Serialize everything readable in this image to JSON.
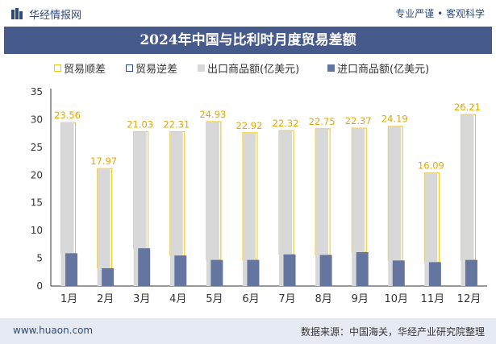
{
  "header": {
    "site_name": "华经情报网",
    "slogan": "专业严谨 • 客观科学"
  },
  "footer": {
    "url": "www.huaon.com",
    "source": "数据来源：中国海关，华经产业研究院整理"
  },
  "colors": {
    "brand": "#2e4a7d",
    "title_bar": "#475a8c",
    "surplus_outline": "#f5c400",
    "deficit_outline": "#2e4a7d",
    "export_bar": "#d8d8d8",
    "import_bar": "#6476a0",
    "surplus_label": "#e3a800"
  },
  "chart_data": {
    "type": "bar",
    "title": "2024年中国与比利时月度贸易差额",
    "categories": [
      "1月",
      "2月",
      "3月",
      "4月",
      "5月",
      "6月",
      "7月",
      "8月",
      "9月",
      "10月",
      "11月",
      "12月"
    ],
    "series": [
      {
        "name": "贸易顺差",
        "style": "outline",
        "values": [
          23.56,
          17.97,
          21.03,
          22.31,
          24.93,
          22.92,
          22.32,
          22.75,
          22.37,
          24.19,
          16.09,
          26.21
        ]
      },
      {
        "name": "贸易逆差",
        "style": "outline",
        "values": [
          null,
          null,
          null,
          null,
          null,
          null,
          null,
          null,
          null,
          null,
          null,
          null
        ]
      },
      {
        "name": "出口商品额(亿美元)",
        "values": [
          29.5,
          21.2,
          27.8,
          27.8,
          29.6,
          27.6,
          28.0,
          28.3,
          28.5,
          28.8,
          20.4,
          30.9
        ]
      },
      {
        "name": "进口商品额(亿美元)",
        "values": [
          5.9,
          3.2,
          6.8,
          5.5,
          4.7,
          4.7,
          5.7,
          5.6,
          6.1,
          4.6,
          4.3,
          4.7
        ]
      }
    ],
    "data_labels": [
      "23.56",
      "17.97",
      "21.03",
      "22.31",
      "24.93",
      "22.92",
      "22.32",
      "22.75",
      "22.37",
      "24.19",
      "16.09",
      "26.21"
    ],
    "y_ticks": [
      "0",
      "5",
      "10",
      "15",
      "20",
      "25",
      "30",
      "35"
    ],
    "ylim": [
      0,
      35
    ],
    "grid": false,
    "legend_position": "top"
  }
}
